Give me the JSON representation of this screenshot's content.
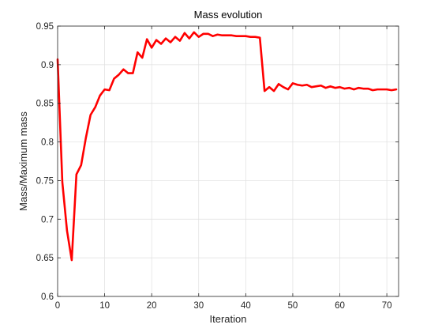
{
  "chart_data": {
    "type": "line",
    "title": "Mass evolution",
    "xlabel": "Iteration",
    "ylabel": "Mass/Maximum mass",
    "xlim": [
      0,
      72.5
    ],
    "ylim": [
      0.6,
      0.95
    ],
    "xticks": [
      0,
      10,
      20,
      30,
      40,
      50,
      60,
      70
    ],
    "xtick_labels": [
      "0",
      "10",
      "20",
      "30",
      "40",
      "50",
      "60",
      "70"
    ],
    "yticks": [
      0.6,
      0.65,
      0.7,
      0.75,
      0.8,
      0.85,
      0.9,
      0.95
    ],
    "ytick_labels": [
      "0.6",
      "0.65",
      "0.7",
      "0.75",
      "0.8",
      "0.85",
      "0.9",
      "0.95"
    ],
    "grid": true,
    "series": [
      {
        "color": "#ff0000",
        "x": [
          0,
          1,
          2,
          3,
          4,
          5,
          6,
          7,
          8,
          9,
          10,
          11,
          12,
          13,
          14,
          15,
          16,
          17,
          18,
          19,
          20,
          21,
          22,
          23,
          24,
          25,
          26,
          27,
          28,
          29,
          30,
          31,
          32,
          33,
          34,
          35,
          36,
          37,
          38,
          39,
          40,
          41,
          42,
          43,
          44,
          45,
          46,
          47,
          48,
          49,
          50,
          51,
          52,
          53,
          54,
          55,
          56,
          57,
          58,
          59,
          60,
          61,
          62,
          63,
          64,
          65,
          66,
          67,
          68,
          69,
          70,
          71,
          72
        ],
        "values": [
          0.907,
          0.748,
          0.685,
          0.647,
          0.758,
          0.77,
          0.805,
          0.835,
          0.845,
          0.86,
          0.868,
          0.867,
          0.882,
          0.887,
          0.894,
          0.889,
          0.889,
          0.916,
          0.909,
          0.933,
          0.922,
          0.932,
          0.927,
          0.934,
          0.929,
          0.936,
          0.931,
          0.941,
          0.934,
          0.942,
          0.936,
          0.94,
          0.94,
          0.937,
          0.939,
          0.938,
          0.938,
          0.938,
          0.937,
          0.937,
          0.937,
          0.936,
          0.936,
          0.935,
          0.866,
          0.871,
          0.866,
          0.875,
          0.871,
          0.868,
          0.876,
          0.874,
          0.873,
          0.874,
          0.871,
          0.872,
          0.873,
          0.87,
          0.872,
          0.87,
          0.871,
          0.869,
          0.87,
          0.868,
          0.87,
          0.869,
          0.869,
          0.867,
          0.868,
          0.868,
          0.868,
          0.867,
          0.868
        ]
      }
    ]
  }
}
